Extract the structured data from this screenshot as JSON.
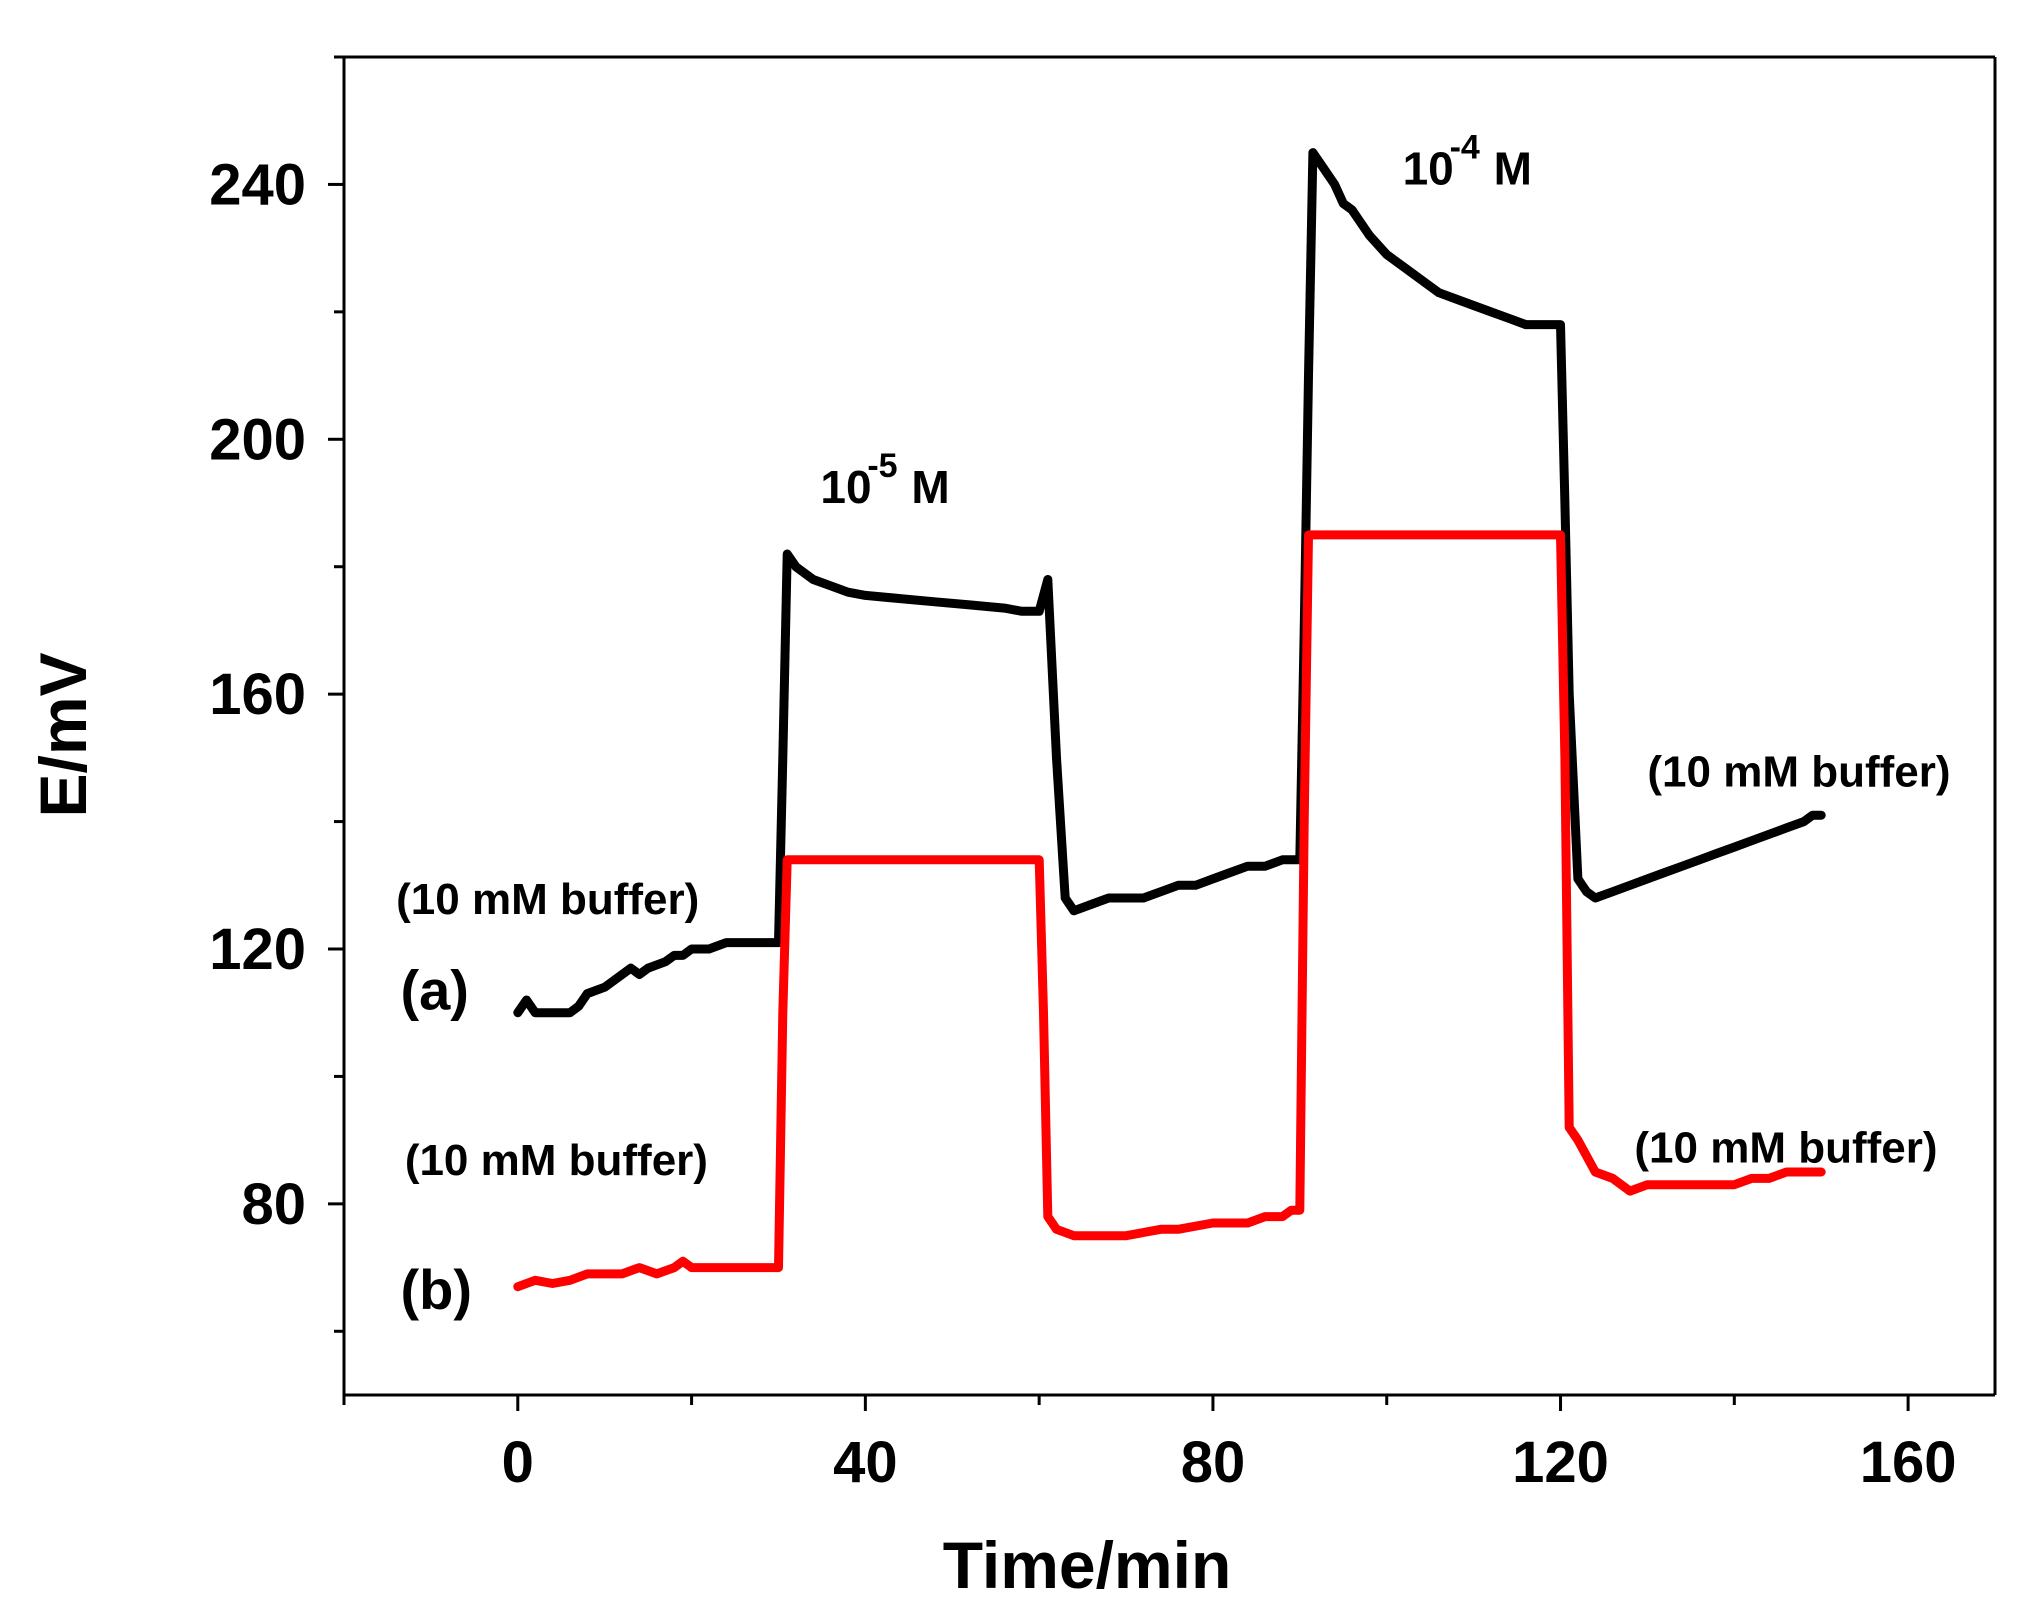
{
  "chart_data": {
    "type": "line",
    "title": "",
    "xlabel": "Time/min",
    "ylabel": "E/mV",
    "xlim": [
      -20,
      170
    ],
    "ylim": [
      50,
      260
    ],
    "x_ticks": [
      0,
      40,
      80,
      120,
      160
    ],
    "x_tick_labels": [
      "0",
      "40",
      "80",
      "120",
      "160"
    ],
    "y_ticks": [
      80,
      120,
      160,
      200,
      240
    ],
    "y_tick_labels": [
      "80",
      "120",
      "160",
      "200",
      "240"
    ],
    "grid": false,
    "colors": {
      "a": "#000000",
      "b": "#ff0000",
      "axis": "#000000"
    },
    "series": [
      {
        "name": "(a)",
        "color": "#000000",
        "x": [
          0,
          1,
          2,
          3,
          5,
          6,
          7,
          8,
          10,
          12,
          13,
          14,
          15,
          17,
          18,
          19,
          20,
          22,
          24,
          26,
          28,
          29,
          30,
          30.5,
          31,
          32,
          34,
          36,
          38,
          40,
          44,
          48,
          52,
          56,
          58,
          59,
          60,
          61,
          62,
          63,
          64,
          66,
          68,
          70,
          72,
          74,
          76,
          78,
          80,
          82,
          84,
          86,
          88,
          89,
          90,
          90.5,
          91,
          91.5,
          92,
          94,
          95,
          96,
          98,
          100,
          102,
          104,
          106,
          108,
          110,
          112,
          114,
          116,
          118,
          119,
          120,
          120.5,
          121,
          122,
          123,
          124,
          126,
          128,
          130,
          132,
          134,
          136,
          138,
          140,
          142,
          144,
          146,
          148,
          149,
          150
        ],
        "y": [
          110,
          112,
          110,
          110,
          110,
          110,
          111,
          113,
          114,
          116,
          117,
          116,
          117,
          118,
          119,
          119,
          120,
          120,
          121,
          121,
          121,
          121,
          121,
          150,
          182,
          180,
          178,
          177,
          176,
          175.5,
          175,
          174.5,
          174,
          173.5,
          173,
          173,
          173,
          178,
          150,
          128,
          126,
          127,
          128,
          128,
          128,
          129,
          130,
          130,
          131,
          132,
          133,
          133,
          134,
          134,
          134,
          170,
          210,
          245,
          244,
          240,
          237,
          236,
          232,
          229,
          227,
          225,
          223,
          222,
          221,
          220,
          219,
          218,
          218,
          218,
          218,
          190,
          160,
          131,
          129,
          128,
          129,
          130,
          131,
          132,
          133,
          134,
          135,
          136,
          137,
          138,
          139,
          140,
          141,
          141
        ]
      },
      {
        "name": "(b)",
        "color": "#ff0000",
        "x": [
          0,
          2,
          4,
          6,
          8,
          10,
          12,
          14,
          16,
          18,
          19,
          20,
          22,
          24,
          26,
          28,
          29,
          30,
          30.5,
          31,
          33,
          40,
          50,
          58,
          59,
          60,
          60.5,
          61,
          62,
          64,
          66,
          70,
          74,
          76,
          80,
          84,
          86,
          88,
          89,
          90,
          90.5,
          91,
          92,
          100,
          110,
          119,
          120,
          120.5,
          121,
          122,
          124,
          126,
          128,
          130,
          134,
          138,
          140,
          142,
          144,
          146,
          148,
          150
        ],
        "y": [
          67,
          68,
          67.5,
          68,
          69,
          69,
          69,
          70,
          69,
          70,
          71,
          70,
          70,
          70,
          70,
          70,
          70,
          70,
          110,
          134,
          134,
          134,
          134,
          134,
          134,
          134,
          110,
          78,
          76,
          75,
          75,
          75,
          76,
          76,
          77,
          77,
          78,
          78,
          79,
          79,
          140,
          185,
          185,
          185,
          185,
          185,
          185,
          150,
          92,
          90,
          85,
          84,
          82,
          83,
          83,
          83,
          83,
          84,
          84,
          85,
          85,
          85
        ]
      }
    ],
    "annotations": [
      {
        "text": "(10 mM buffer)",
        "x": -14,
        "y": 125.5
      },
      {
        "text": "(a)",
        "x": -13.5,
        "y": 110.5
      },
      {
        "text": "(10 mM buffer)",
        "x": -13,
        "y": 84.5
      },
      {
        "text": "(b)",
        "x": -13.5,
        "y": 63.5
      },
      {
        "text": "(10 mM buffer)",
        "x": 130,
        "y": 145.5
      },
      {
        "text": "(10 mM buffer)",
        "x": 128.5,
        "y": 86.5
      }
    ],
    "concentration_labels": [
      {
        "base": "10",
        "exponent": "-5",
        "unit": "M",
        "x": 40,
        "y": 190
      },
      {
        "base": "10",
        "exponent": "-4",
        "unit": "M",
        "x": 107,
        "y": 240
      }
    ]
  }
}
